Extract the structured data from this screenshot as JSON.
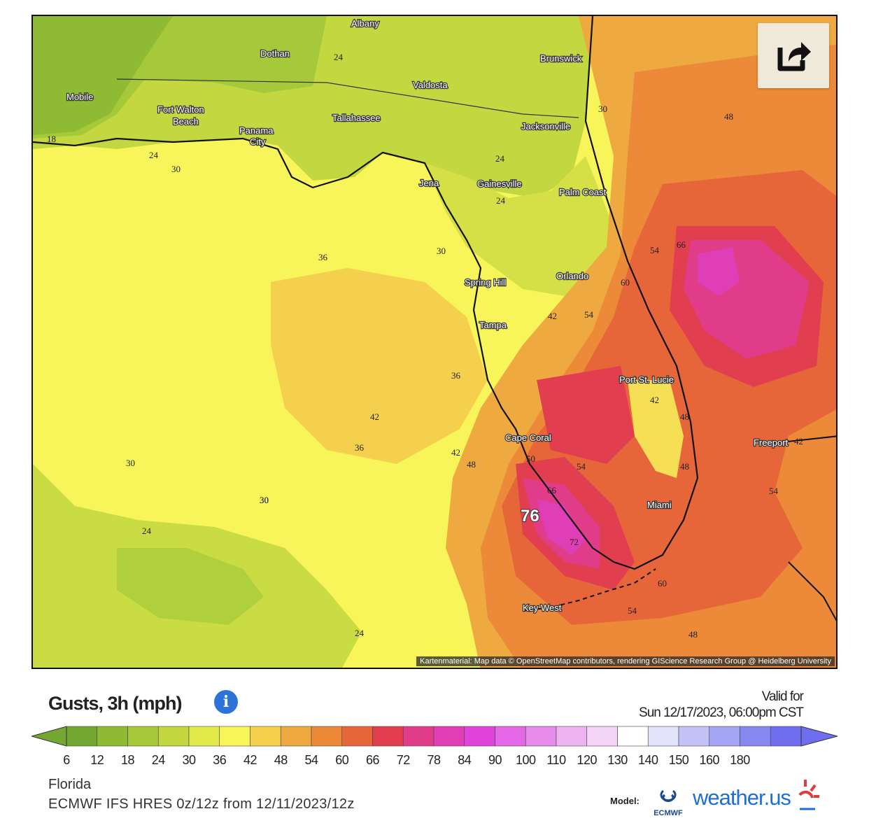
{
  "map": {
    "attribution": "Kartenmaterial: Map data © OpenStreetMap contributors, rendering GIScience Research Group @ Heidelberg University",
    "cities": [
      {
        "name": "Albany"
      },
      {
        "name": "Dothan"
      },
      {
        "name": "Brunswick"
      },
      {
        "name": "Mobile"
      },
      {
        "name": "Valdosta"
      },
      {
        "name": "Fort Walton"
      },
      {
        "name": "Beach"
      },
      {
        "name": "Tallahassee"
      },
      {
        "name": "Panama"
      },
      {
        "name": "City"
      },
      {
        "name": "Jacksonville"
      },
      {
        "name": "Jena"
      },
      {
        "name": "Gainesville"
      },
      {
        "name": "Palm Coast"
      },
      {
        "name": "Spring Hill"
      },
      {
        "name": "Orlando"
      },
      {
        "name": "Tampa"
      },
      {
        "name": "Port St. Lucie"
      },
      {
        "name": "Cape Coral"
      },
      {
        "name": "Freeport"
      },
      {
        "name": "Miami"
      },
      {
        "name": "Key West"
      }
    ],
    "values": [
      "24",
      "18",
      "24",
      "30",
      "30",
      "24",
      "48",
      "24",
      "66",
      "54",
      "36",
      "30",
      "60",
      "42",
      "54",
      "36",
      "42",
      "48",
      "42",
      "36",
      "30",
      "42",
      "48",
      "54",
      "30",
      "48",
      "54",
      "66",
      "30",
      "76",
      "72",
      "24",
      "60",
      "54",
      "24",
      "48",
      "42",
      "50"
    ],
    "colors": {
      "land_north": "#9bc83a",
      "gulf_yellow": "#f7f55a",
      "orange": "#ee9a3a",
      "red": "#e2543a",
      "magenta": "#e04ec3"
    }
  },
  "share": {
    "icon": "share-icon"
  },
  "header": {
    "title": "Gusts, 3h (mph)",
    "info_icon": "i",
    "valid_label": "Valid for",
    "valid_time": "Sun 12/17/2023, 06:00pm CST"
  },
  "legend": {
    "ticks": [
      "6",
      "12",
      "18",
      "24",
      "30",
      "36",
      "42",
      "48",
      "54",
      "60",
      "66",
      "72",
      "78",
      "84",
      "90",
      "100",
      "110",
      "120",
      "130",
      "140",
      "150",
      "160",
      "180"
    ],
    "colors": [
      "#74a732",
      "#8fbb34",
      "#a5c93b",
      "#c2d740",
      "#e2ea4b",
      "#f7f55a",
      "#f5cf4e",
      "#eeaa40",
      "#ec8a3a",
      "#e6663a",
      "#e13f4f",
      "#e03c8a",
      "#e03eb6",
      "#e044db",
      "#e467e7",
      "#e88ded",
      "#eeb3f1",
      "#f4d4f6",
      "#ffffff",
      "#e3e3fb",
      "#c2c2f7",
      "#a4a4f4",
      "#8787f0",
      "#6e6eee"
    ]
  },
  "footer": {
    "region": "Florida",
    "model_run": "ECMWF IFS HRES 0z/12z from 12/11/2023/12z",
    "model_label": "Model:",
    "ecmwf": "ECMWF",
    "brand": "weather.us"
  }
}
